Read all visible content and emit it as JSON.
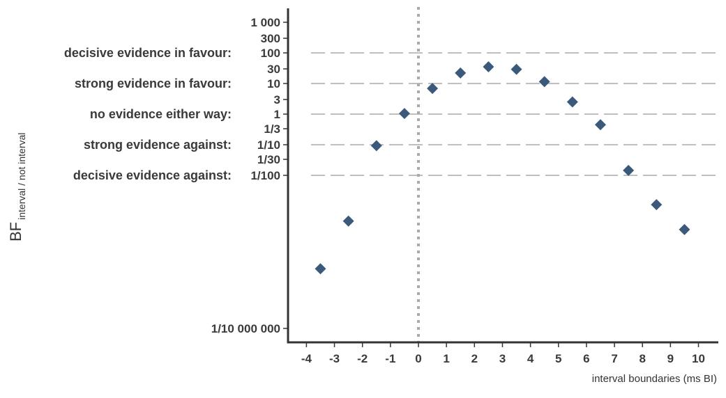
{
  "chart_data": {
    "type": "scatter",
    "xlabel": "interval boundaries (ms BI)",
    "ylabel_main": "BF",
    "ylabel_sub": "interval / not interval",
    "y_scale": "log10",
    "ylim": [
      1e-08,
      3000
    ],
    "xlim": [
      -4.5,
      10.7
    ],
    "x_ticks": [
      -4,
      -3,
      -2,
      -1,
      0,
      1,
      2,
      3,
      4,
      5,
      6,
      7,
      8,
      9,
      10
    ],
    "y_ticks": [
      {
        "value": 1000,
        "label": "1 000"
      },
      {
        "value": 300,
        "label": "300"
      },
      {
        "value": 100,
        "label": "100"
      },
      {
        "value": 30,
        "label": "30"
      },
      {
        "value": 10,
        "label": "10"
      },
      {
        "value": 3,
        "label": "3"
      },
      {
        "value": 1,
        "label": "1"
      },
      {
        "value": 0.3333,
        "label": "1/3"
      },
      {
        "value": 0.1,
        "label": "1/10"
      },
      {
        "value": 0.03333,
        "label": "1/30"
      },
      {
        "value": 0.01,
        "label": "1/100"
      },
      {
        "value": 1e-07,
        "label": "1/10 000 000"
      }
    ],
    "reference_lines": [
      {
        "value": 100,
        "label": "decisive evidence in favour:"
      },
      {
        "value": 10,
        "label": "strong evidence in favour:"
      },
      {
        "value": 1,
        "label": "no evidence either way:"
      },
      {
        "value": 0.1,
        "label": "strong evidence against:"
      },
      {
        "value": 0.01,
        "label": "decisive evidence against:"
      }
    ],
    "vline_x": 0,
    "points": [
      {
        "x": -3.5,
        "y": 8.9e-06
      },
      {
        "x": -2.5,
        "y": 0.00032
      },
      {
        "x": -1.5,
        "y": 0.093
      },
      {
        "x": -0.5,
        "y": 1.05
      },
      {
        "x": 0.5,
        "y": 6.9
      },
      {
        "x": 1.5,
        "y": 22
      },
      {
        "x": 2.5,
        "y": 35
      },
      {
        "x": 3.5,
        "y": 29
      },
      {
        "x": 4.5,
        "y": 11.5
      },
      {
        "x": 5.5,
        "y": 2.5
      },
      {
        "x": 6.5,
        "y": 0.45
      },
      {
        "x": 7.5,
        "y": 0.0145
      },
      {
        "x": 8.5,
        "y": 0.0011
      },
      {
        "x": 9.5,
        "y": 0.00017
      }
    ],
    "colors": {
      "point": "#3b5a7b",
      "axis": "#333333",
      "ref_line": "#aaaaaa",
      "vline": "#aaaaaa"
    }
  }
}
